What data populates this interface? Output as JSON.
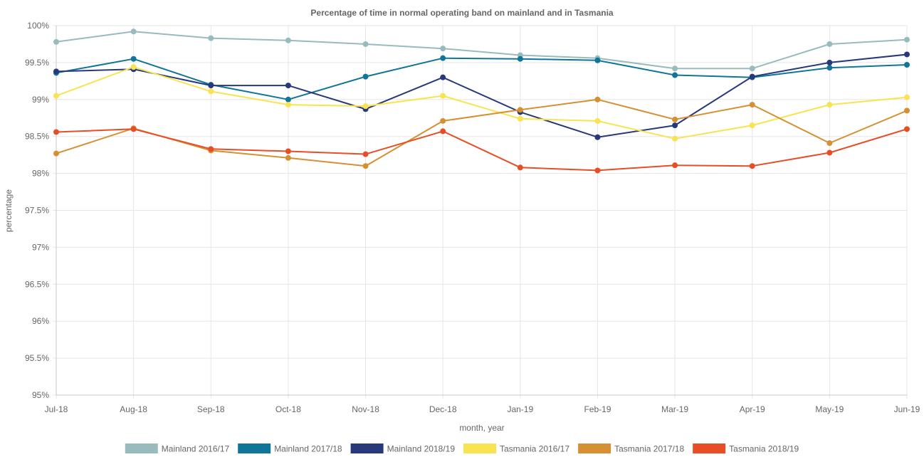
{
  "chart_data": {
    "type": "line",
    "title": "Percentage of time in normal operating band on mainland and in Tasmania",
    "xlabel": "month, year",
    "ylabel": "percentage",
    "categories": [
      "Jul-18",
      "Aug-18",
      "Sep-18",
      "Oct-18",
      "Nov-18",
      "Dec-18",
      "Jan-19",
      "Feb-19",
      "Mar-19",
      "Apr-19",
      "May-19",
      "Jun-19"
    ],
    "ylim": [
      95,
      100
    ],
    "yticks": [
      95,
      95.5,
      96,
      96.5,
      97,
      97.5,
      98,
      98.5,
      99,
      99.5,
      100
    ],
    "ytick_labels": [
      "95%",
      "95.5%",
      "96%",
      "96.5%",
      "97%",
      "97.5%",
      "98%",
      "98.5%",
      "99%",
      "99.5%",
      "100%"
    ],
    "grid": true,
    "legend_position": "bottom",
    "series": [
      {
        "name": "Mainland 2016/17",
        "color": "#98bbbd",
        "values": [
          99.78,
          99.92,
          99.83,
          99.8,
          99.75,
          99.69,
          99.6,
          99.56,
          99.42,
          99.42,
          99.75,
          99.81
        ]
      },
      {
        "name": "Mainland 2017/18",
        "color": "#0f7599",
        "values": [
          99.36,
          99.55,
          99.2,
          99.0,
          99.31,
          99.56,
          99.55,
          99.53,
          99.33,
          99.3,
          99.43,
          99.47
        ]
      },
      {
        "name": "Mainland 2018/19",
        "color": "#27397a",
        "values": [
          99.38,
          99.41,
          99.19,
          99.19,
          98.87,
          99.3,
          98.83,
          98.49,
          98.65,
          99.31,
          99.5,
          99.61
        ]
      },
      {
        "name": "Tasmania 2016/17",
        "color": "#f8e350",
        "values": [
          99.05,
          99.44,
          99.11,
          98.93,
          98.91,
          99.05,
          98.74,
          98.71,
          98.47,
          98.65,
          98.93,
          99.03
        ]
      },
      {
        "name": "Tasmania 2017/18",
        "color": "#d68f33",
        "values": [
          98.27,
          98.61,
          98.31,
          98.21,
          98.1,
          98.71,
          98.86,
          99.0,
          98.73,
          98.93,
          98.41,
          98.85
        ]
      },
      {
        "name": "Tasmania 2018/19",
        "color": "#e84e26",
        "values": [
          98.56,
          98.6,
          98.33,
          98.3,
          98.26,
          98.57,
          98.08,
          98.04,
          98.11,
          98.1,
          98.28,
          98.6
        ]
      }
    ]
  }
}
